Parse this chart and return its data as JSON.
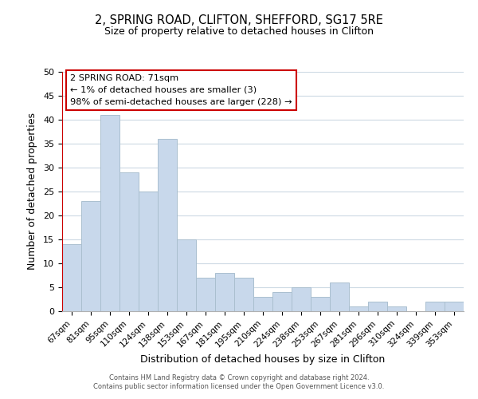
{
  "title_line1": "2, SPRING ROAD, CLIFTON, SHEFFORD, SG17 5RE",
  "title_line2": "Size of property relative to detached houses in Clifton",
  "xlabel": "Distribution of detached houses by size in Clifton",
  "ylabel": "Number of detached properties",
  "categories": [
    "67sqm",
    "81sqm",
    "95sqm",
    "110sqm",
    "124sqm",
    "138sqm",
    "153sqm",
    "167sqm",
    "181sqm",
    "195sqm",
    "210sqm",
    "224sqm",
    "238sqm",
    "253sqm",
    "267sqm",
    "281sqm",
    "296sqm",
    "310sqm",
    "324sqm",
    "339sqm",
    "353sqm"
  ],
  "values": [
    14,
    23,
    41,
    29,
    25,
    36,
    15,
    7,
    8,
    7,
    3,
    4,
    5,
    3,
    6,
    1,
    2,
    1,
    0,
    2,
    2
  ],
  "bar_color": "#c8d8eb",
  "bar_edge_color": "#aabfcf",
  "highlight_line_color": "#cc0000",
  "ylim": [
    0,
    50
  ],
  "yticks": [
    0,
    5,
    10,
    15,
    20,
    25,
    30,
    35,
    40,
    45,
    50
  ],
  "annotation_title": "2 SPRING ROAD: 71sqm",
  "annotation_line1": "← 1% of detached houses are smaller (3)",
  "annotation_line2": "98% of semi-detached houses are larger (228) →",
  "annotation_box_color": "#ffffff",
  "annotation_box_edge": "#cc0000",
  "footer_line1": "Contains HM Land Registry data © Crown copyright and database right 2024.",
  "footer_line2": "Contains public sector information licensed under the Open Government Licence v3.0.",
  "background_color": "#ffffff",
  "grid_color": "#ccd9e3"
}
